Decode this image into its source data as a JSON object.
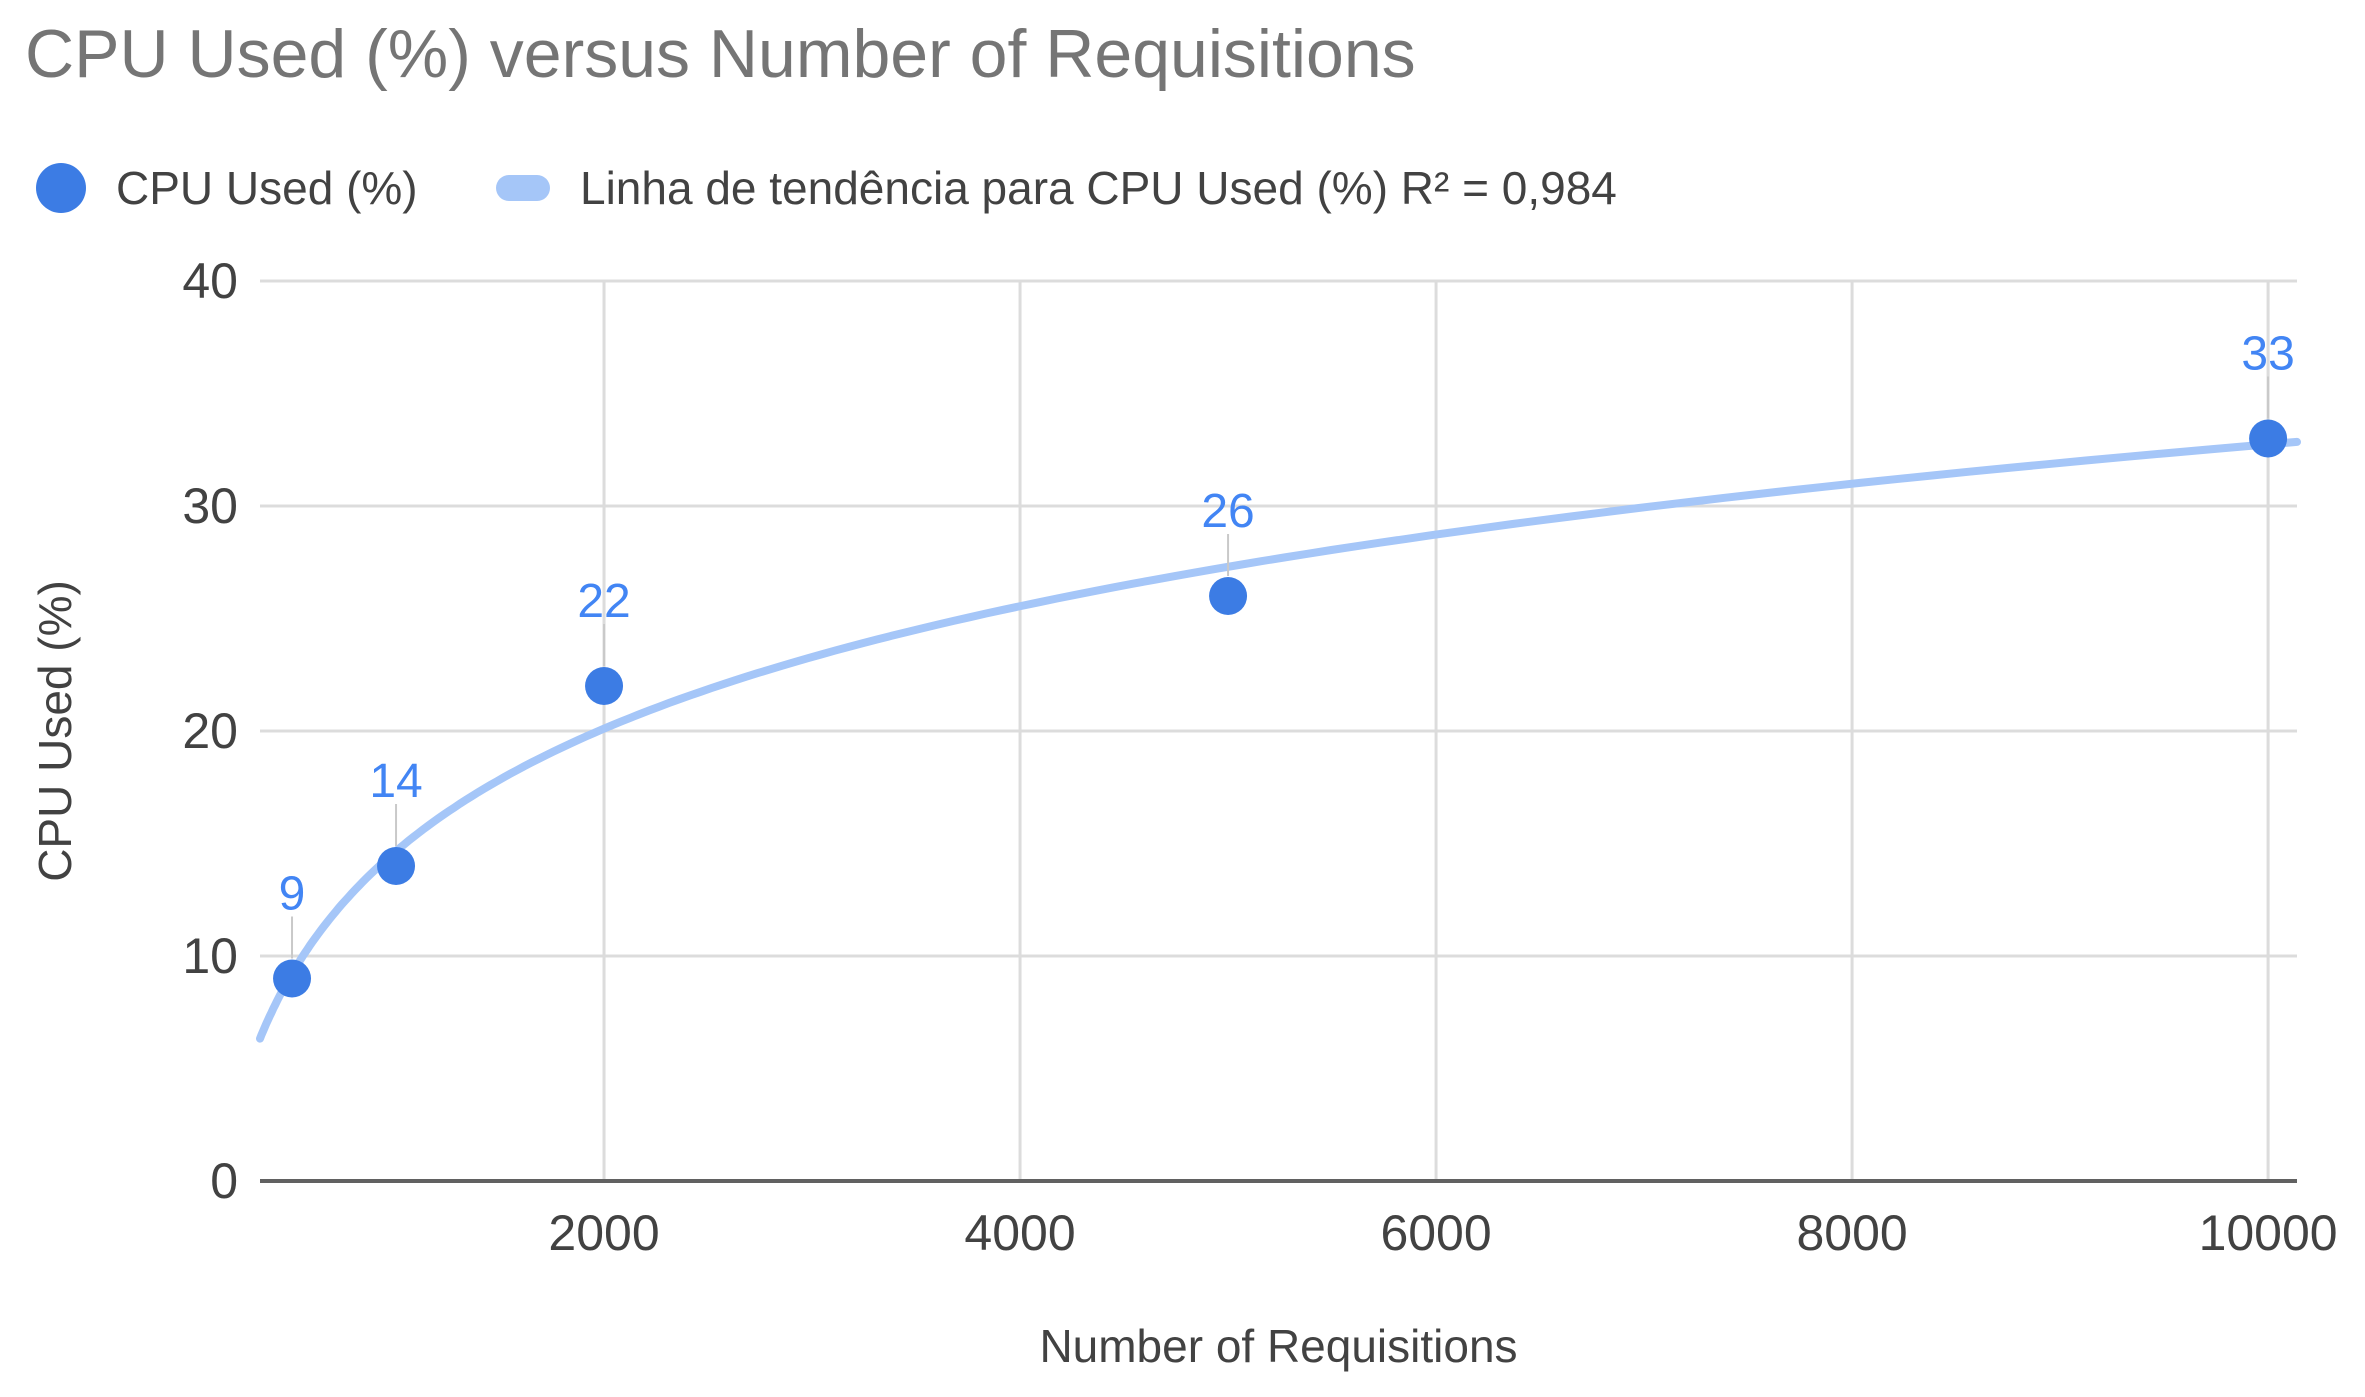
{
  "title": "CPU Used (%) versus Number of Requisitions",
  "legend": {
    "series_label": "CPU Used (%)",
    "trendline_label": "Linha de tendência para CPU Used (%) R² = 0,984"
  },
  "colors": {
    "title_text": "#757575",
    "axis_text": "#424242",
    "series": "#3c7ce4",
    "data_label": "#4285f4",
    "trendline": "#a5c6f8",
    "gridline": "#dcdcdc",
    "axis_line": "#616161",
    "leader_line": "#c9c9c9",
    "background": "#ffffff"
  },
  "chart_data": {
    "type": "scatter",
    "title": "CPU Used (%) versus Number of Requisitions",
    "xlabel": "Number of Requisitions",
    "ylabel": "CPU Used (%)",
    "series": [
      {
        "name": "CPU Used (%)",
        "points": [
          {
            "x": 500,
            "y": 9,
            "label": "9"
          },
          {
            "x": 1000,
            "y": 14,
            "label": "14"
          },
          {
            "x": 2000,
            "y": 22,
            "label": "22"
          },
          {
            "x": 5000,
            "y": 26,
            "label": "26"
          },
          {
            "x": 10000,
            "y": 33,
            "label": "33"
          }
        ]
      }
    ],
    "trendline": {
      "name": "Linha de tendência para CPU Used (%)",
      "fit": "logarithmic",
      "a": 7.851,
      "b": -39.57,
      "r2_label": "R² = 0,984"
    },
    "xlim": [
      346,
      10139
    ],
    "ylim": [
      0,
      40
    ],
    "x_ticks": [
      2000,
      4000,
      6000,
      8000,
      10000
    ],
    "y_ticks": [
      0,
      10,
      20,
      30,
      40
    ],
    "grid": true,
    "legend_position": "top"
  }
}
